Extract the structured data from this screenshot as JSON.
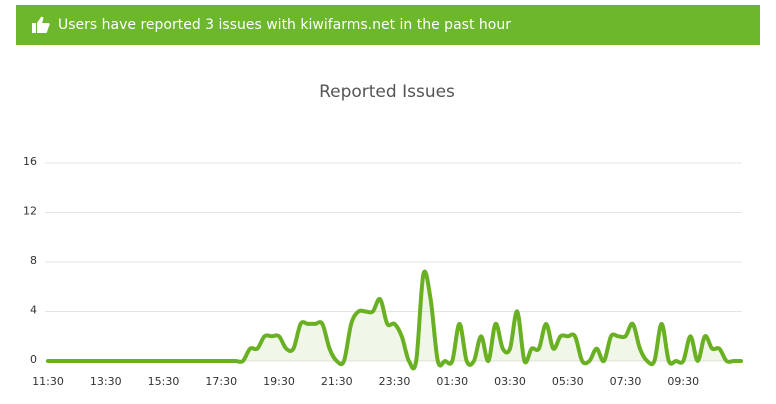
{
  "banner": {
    "text": "Users have reported 3 issues with kiwifarms.net in the past hour"
  },
  "chart_data": {
    "type": "line",
    "title": "Reported Issues",
    "categories": [
      "11:30",
      null,
      null,
      null,
      null,
      null,
      null,
      null,
      "13:30",
      null,
      null,
      null,
      null,
      null,
      null,
      null,
      "15:30",
      null,
      null,
      null,
      null,
      null,
      null,
      null,
      "17:30",
      null,
      null,
      null,
      null,
      null,
      null,
      null,
      "19:30",
      null,
      null,
      null,
      null,
      null,
      null,
      null,
      "21:30",
      null,
      null,
      null,
      null,
      null,
      null,
      null,
      "23:30",
      null,
      null,
      null,
      null,
      null,
      null,
      null,
      "01:30",
      null,
      null,
      null,
      null,
      null,
      null,
      null,
      "03:30",
      null,
      null,
      null,
      null,
      null,
      null,
      null,
      "05:30",
      null,
      null,
      null,
      null,
      null,
      null,
      null,
      "07:30",
      null,
      null,
      null,
      null,
      null,
      null,
      null,
      "09:30",
      null,
      null,
      null,
      null,
      null,
      null,
      null,
      null
    ],
    "series": [
      {
        "name": "Reported Issues",
        "color": "#6ab023",
        "values": [
          0,
          0,
          0,
          0,
          0,
          0,
          0,
          0,
          0,
          0,
          0,
          0,
          0,
          0,
          0,
          0,
          0,
          0,
          0,
          0,
          0,
          0,
          0,
          0,
          0,
          0,
          0,
          0,
          1,
          1,
          2,
          2,
          2,
          1,
          1,
          3,
          3,
          3,
          3,
          1,
          0,
          0,
          3,
          4,
          4,
          4,
          5,
          3,
          3,
          2,
          0,
          0,
          7,
          5,
          0,
          0,
          0,
          3,
          0,
          0,
          2,
          0,
          3,
          1,
          1,
          4,
          0,
          1,
          1,
          3,
          1,
          2,
          2,
          2,
          0,
          0,
          1,
          0,
          2,
          2,
          2,
          3,
          1,
          0,
          0,
          3,
          0,
          0,
          0,
          2,
          0,
          2,
          1,
          1,
          0,
          0,
          0
        ]
      }
    ],
    "ylim": [
      0,
      17
    ],
    "yticks": [
      0,
      4,
      8,
      12,
      16
    ],
    "grid": true
  }
}
